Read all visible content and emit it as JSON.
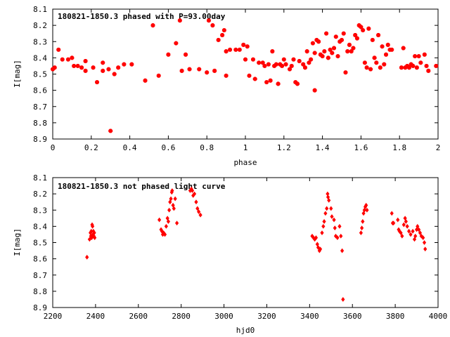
{
  "chart_data": [
    {
      "type": "scatter",
      "title": "180821-1850.3 phased with P=93.00day",
      "xlabel": "phase",
      "ylabel": "I[mag]",
      "xlim": [
        0,
        2
      ],
      "ylim": [
        8.9,
        8.1
      ],
      "y_inverted": true,
      "grid": false,
      "marker_color": "#ff0000",
      "xticks": [
        "0",
        "0.2",
        "0.4",
        "0.6",
        "0.8",
        "1",
        "1.2",
        "1.4",
        "1.6",
        "1.8",
        "2"
      ],
      "yticks": [
        "8.1",
        "8.2",
        "8.3",
        "8.4",
        "8.5",
        "8.6",
        "8.7",
        "8.8",
        "8.9"
      ],
      "points": [
        [
          0.0,
          8.47
        ],
        [
          0.01,
          8.46
        ],
        [
          0.03,
          8.35
        ],
        [
          0.05,
          8.41
        ],
        [
          0.08,
          8.41
        ],
        [
          0.1,
          8.4
        ],
        [
          0.11,
          8.45
        ],
        [
          0.13,
          8.45
        ],
        [
          0.15,
          8.46
        ],
        [
          0.17,
          8.48
        ],
        [
          0.17,
          8.42
        ],
        [
          0.21,
          8.46
        ],
        [
          0.23,
          8.55
        ],
        [
          0.26,
          8.43
        ],
        [
          0.26,
          8.48
        ],
        [
          0.29,
          8.47
        ],
        [
          0.3,
          8.85
        ],
        [
          0.32,
          8.5
        ],
        [
          0.34,
          8.46
        ],
        [
          0.37,
          8.44
        ],
        [
          0.41,
          8.44
        ],
        [
          0.48,
          8.54
        ],
        [
          0.52,
          8.2
        ],
        [
          0.55,
          8.51
        ],
        [
          0.6,
          8.38
        ],
        [
          0.64,
          8.31
        ],
        [
          0.66,
          8.17
        ],
        [
          0.67,
          8.48
        ],
        [
          0.69,
          8.38
        ],
        [
          0.71,
          8.47
        ],
        [
          0.76,
          8.47
        ],
        [
          0.8,
          8.49
        ],
        [
          0.81,
          8.17
        ],
        [
          0.83,
          8.2
        ],
        [
          0.84,
          8.48
        ],
        [
          0.86,
          8.29
        ],
        [
          0.88,
          8.26
        ],
        [
          0.89,
          8.23
        ],
        [
          0.9,
          8.36
        ],
        [
          0.9,
          8.51
        ],
        [
          0.92,
          8.35
        ],
        [
          0.95,
          8.35
        ],
        [
          0.97,
          8.35
        ],
        [
          0.99,
          8.32
        ],
        [
          1.0,
          8.41
        ],
        [
          1.01,
          8.33
        ],
        [
          1.02,
          8.51
        ],
        [
          1.04,
          8.41
        ],
        [
          1.05,
          8.53
        ],
        [
          1.07,
          8.43
        ],
        [
          1.09,
          8.43
        ],
        [
          1.1,
          8.45
        ],
        [
          1.11,
          8.55
        ],
        [
          1.12,
          8.44
        ],
        [
          1.13,
          8.54
        ],
        [
          1.14,
          8.36
        ],
        [
          1.15,
          8.45
        ],
        [
          1.16,
          8.44
        ],
        [
          1.17,
          8.56
        ],
        [
          1.18,
          8.44
        ],
        [
          1.19,
          8.45
        ],
        [
          1.2,
          8.41
        ],
        [
          1.21,
          8.44
        ],
        [
          1.23,
          8.47
        ],
        [
          1.24,
          8.45
        ],
        [
          1.25,
          8.41
        ],
        [
          1.26,
          8.55
        ],
        [
          1.27,
          8.56
        ],
        [
          1.28,
          8.42
        ],
        [
          1.3,
          8.44
        ],
        [
          1.31,
          8.46
        ],
        [
          1.32,
          8.36
        ],
        [
          1.33,
          8.43
        ],
        [
          1.34,
          8.41
        ],
        [
          1.35,
          8.31
        ],
        [
          1.36,
          8.6
        ],
        [
          1.36,
          8.37
        ],
        [
          1.37,
          8.29
        ],
        [
          1.38,
          8.3
        ],
        [
          1.39,
          8.38
        ],
        [
          1.4,
          8.39
        ],
        [
          1.41,
          8.36
        ],
        [
          1.42,
          8.25
        ],
        [
          1.43,
          8.4
        ],
        [
          1.44,
          8.35
        ],
        [
          1.45,
          8.37
        ],
        [
          1.46,
          8.34
        ],
        [
          1.47,
          8.27
        ],
        [
          1.48,
          8.39
        ],
        [
          1.49,
          8.3
        ],
        [
          1.5,
          8.29
        ],
        [
          1.51,
          8.25
        ],
        [
          1.52,
          8.49
        ],
        [
          1.53,
          8.36
        ],
        [
          1.54,
          8.32
        ],
        [
          1.55,
          8.36
        ],
        [
          1.56,
          8.34
        ],
        [
          1.57,
          8.26
        ],
        [
          1.58,
          8.28
        ],
        [
          1.59,
          8.2
        ],
        [
          1.6,
          8.21
        ],
        [
          1.61,
          8.23
        ],
        [
          1.62,
          8.43
        ],
        [
          1.63,
          8.46
        ],
        [
          1.64,
          8.22
        ],
        [
          1.65,
          8.47
        ],
        [
          1.66,
          8.29
        ],
        [
          1.67,
          8.4
        ],
        [
          1.68,
          8.43
        ],
        [
          1.69,
          8.26
        ],
        [
          1.7,
          8.46
        ],
        [
          1.71,
          8.33
        ],
        [
          1.72,
          8.44
        ],
        [
          1.73,
          8.38
        ],
        [
          1.74,
          8.32
        ],
        [
          1.75,
          8.35
        ],
        [
          1.76,
          8.35
        ],
        [
          1.81,
          8.46
        ],
        [
          1.82,
          8.34
        ],
        [
          1.83,
          8.46
        ],
        [
          1.84,
          8.45
        ],
        [
          1.85,
          8.46
        ],
        [
          1.86,
          8.44
        ],
        [
          1.87,
          8.45
        ],
        [
          1.88,
          8.39
        ],
        [
          1.89,
          8.46
        ],
        [
          1.9,
          8.39
        ],
        [
          1.91,
          8.43
        ],
        [
          1.93,
          8.38
        ],
        [
          1.94,
          8.45
        ],
        [
          1.95,
          8.48
        ],
        [
          1.99,
          8.45
        ]
      ]
    },
    {
      "type": "scatter",
      "title": "180821-1850.3 not phased light curve",
      "xlabel": "hjd0",
      "ylabel": "I[mag]",
      "xlim": [
        2200,
        4000
      ],
      "ylim": [
        8.9,
        8.1
      ],
      "y_inverted": true,
      "grid": false,
      "marker_color": "#ff0000",
      "xticks": [
        "2200",
        "2400",
        "2600",
        "2800",
        "3000",
        "3200",
        "3400",
        "3600",
        "3800",
        "4000"
      ],
      "yticks": [
        "8.1",
        "8.2",
        "8.3",
        "8.4",
        "8.5",
        "8.6",
        "8.7",
        "8.8",
        "8.9"
      ],
      "points": [
        [
          2360,
          8.59
        ],
        [
          2372,
          8.48
        ],
        [
          2376,
          8.44
        ],
        [
          2378,
          8.46
        ],
        [
          2380,
          8.43
        ],
        [
          2382,
          8.47
        ],
        [
          2384,
          8.39
        ],
        [
          2386,
          8.4
        ],
        [
          2388,
          8.45
        ],
        [
          2390,
          8.43
        ],
        [
          2392,
          8.46
        ],
        [
          2394,
          8.44
        ],
        [
          2396,
          8.47
        ],
        [
          2698,
          8.36
        ],
        [
          2706,
          8.42
        ],
        [
          2710,
          8.43
        ],
        [
          2714,
          8.45
        ],
        [
          2718,
          8.44
        ],
        [
          2724,
          8.45
        ],
        [
          2730,
          8.4
        ],
        [
          2736,
          8.35
        ],
        [
          2740,
          8.37
        ],
        [
          2744,
          8.3
        ],
        [
          2748,
          8.25
        ],
        [
          2752,
          8.23
        ],
        [
          2756,
          8.19
        ],
        [
          2758,
          8.18
        ],
        [
          2762,
          8.27
        ],
        [
          2766,
          8.29
        ],
        [
          2772,
          8.23
        ],
        [
          2780,
          8.38
        ],
        [
          2842,
          8.18
        ],
        [
          2848,
          8.17
        ],
        [
          2852,
          8.18
        ],
        [
          2856,
          8.21
        ],
        [
          2862,
          8.2
        ],
        [
          2870,
          8.25
        ],
        [
          2876,
          8.29
        ],
        [
          2882,
          8.31
        ],
        [
          2890,
          8.33
        ],
        [
          3412,
          8.46
        ],
        [
          3418,
          8.47
        ],
        [
          3424,
          8.48
        ],
        [
          3430,
          8.47
        ],
        [
          3436,
          8.51
        ],
        [
          3440,
          8.53
        ],
        [
          3446,
          8.55
        ],
        [
          3450,
          8.54
        ],
        [
          3458,
          8.44
        ],
        [
          3464,
          8.4
        ],
        [
          3468,
          8.37
        ],
        [
          3474,
          8.32
        ],
        [
          3480,
          8.29
        ],
        [
          3484,
          8.2
        ],
        [
          3486,
          8.22
        ],
        [
          3490,
          8.24
        ],
        [
          3500,
          8.29
        ],
        [
          3504,
          8.34
        ],
        [
          3514,
          8.36
        ],
        [
          3518,
          8.41
        ],
        [
          3522,
          8.46
        ],
        [
          3530,
          8.47
        ],
        [
          3540,
          8.4
        ],
        [
          3546,
          8.46
        ],
        [
          3552,
          8.55
        ],
        [
          3556,
          8.85
        ],
        [
          3640,
          8.44
        ],
        [
          3644,
          8.41
        ],
        [
          3648,
          8.37
        ],
        [
          3652,
          8.32
        ],
        [
          3656,
          8.3
        ],
        [
          3660,
          8.28
        ],
        [
          3664,
          8.27
        ],
        [
          3668,
          8.3
        ],
        [
          3784,
          8.32
        ],
        [
          3788,
          8.38
        ],
        [
          3792,
          8.38
        ],
        [
          3812,
          8.36
        ],
        [
          3816,
          8.42
        ],
        [
          3820,
          8.43
        ],
        [
          3826,
          8.44
        ],
        [
          3832,
          8.46
        ],
        [
          3840,
          8.39
        ],
        [
          3846,
          8.35
        ],
        [
          3850,
          8.37
        ],
        [
          3856,
          8.4
        ],
        [
          3864,
          8.43
        ],
        [
          3872,
          8.45
        ],
        [
          3882,
          8.43
        ],
        [
          3890,
          8.48
        ],
        [
          3894,
          8.46
        ],
        [
          3900,
          8.42
        ],
        [
          3904,
          8.4
        ],
        [
          3910,
          8.42
        ],
        [
          3916,
          8.44
        ],
        [
          3922,
          8.46
        ],
        [
          3930,
          8.47
        ],
        [
          3936,
          8.5
        ],
        [
          3940,
          8.54
        ]
      ]
    }
  ]
}
